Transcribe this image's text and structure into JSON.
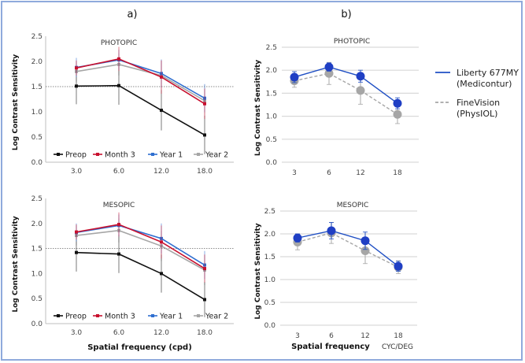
{
  "figure": {
    "panel_a_label": "a)",
    "panel_b_label": "b)",
    "border_color": "#8faadc"
  },
  "chart_data": [
    {
      "id": "a-photopic",
      "type": "line",
      "title": "PHOTOPIC",
      "xlabel": "",
      "ylabel": "Log Contrast Sensitivity",
      "categories": [
        "3.0",
        "6.0",
        "12.0",
        "18.0"
      ],
      "ylim": [
        0,
        2.5
      ],
      "yticks": [
        "0.0",
        "0.5",
        "1.0",
        "1.5",
        "2.0",
        "2.5"
      ],
      "reference_line": 1.5,
      "legend_position": "bottom-inside",
      "series": [
        {
          "name": "Preop",
          "color": "#111111",
          "values": [
            1.51,
            1.52,
            1.03,
            0.54
          ],
          "err": [
            0.36,
            0.38,
            0.4,
            0.38
          ]
        },
        {
          "name": "Month 3",
          "color": "#c8102e",
          "values": [
            1.87,
            2.05,
            1.69,
            1.16
          ],
          "err": [
            0.15,
            0.24,
            0.33,
            0.3
          ]
        },
        {
          "name": "Year 1",
          "color": "#2f6fd0",
          "values": [
            1.88,
            2.03,
            1.76,
            1.27
          ],
          "err": [
            0.19,
            0.2,
            0.28,
            0.28
          ]
        },
        {
          "name": "Year 2",
          "color": "#a6a6a6",
          "values": [
            1.8,
            1.94,
            1.72,
            1.22
          ],
          "err": [
            0.2,
            0.22,
            0.3,
            0.32
          ]
        }
      ]
    },
    {
      "id": "a-mesopic",
      "type": "line",
      "title": "MESOPIC",
      "xlabel": "Spatial frequency (cpd)",
      "ylabel": "Log Contrast Sensitivity",
      "categories": [
        "3.0",
        "6.0",
        "12.0",
        "18.0"
      ],
      "ylim": [
        0,
        2.5
      ],
      "yticks": [
        "0.0",
        "0.5",
        "1.0",
        "1.5",
        "2.0",
        "2.5"
      ],
      "reference_line": 1.5,
      "legend_position": "bottom-inside",
      "series": [
        {
          "name": "Preop",
          "color": "#111111",
          "values": [
            1.42,
            1.39,
            1.0,
            0.48
          ],
          "err": [
            0.38,
            0.38,
            0.38,
            0.35
          ]
        },
        {
          "name": "Month 3",
          "color": "#c8102e",
          "values": [
            1.83,
            1.98,
            1.63,
            1.1
          ],
          "err": [
            0.15,
            0.24,
            0.33,
            0.28
          ]
        },
        {
          "name": "Year 1",
          "color": "#2f6fd0",
          "values": [
            1.82,
            1.96,
            1.7,
            1.17
          ],
          "err": [
            0.18,
            0.22,
            0.3,
            0.28
          ]
        },
        {
          "name": "Year 2",
          "color": "#a6a6a6",
          "values": [
            1.76,
            1.86,
            1.55,
            1.07
          ],
          "err": [
            0.2,
            0.24,
            0.3,
            0.3
          ]
        }
      ]
    },
    {
      "id": "b-photopic",
      "type": "line",
      "title": "PHOTOPIC",
      "xlabel": "",
      "ylabel": "Log Contrast Sensitivity",
      "categories": [
        "3",
        "6",
        "12",
        "18"
      ],
      "ylim": [
        0,
        2.5
      ],
      "yticks": [
        "0.0",
        "0.5",
        "1.0",
        "1.5",
        "2.0",
        "2.5"
      ],
      "grid": true,
      "legend_position": "right",
      "series": [
        {
          "name": "Liberty 677MY (Medicontur)",
          "legend_lines": [
            "Liberty 677MY",
            "(Medicontur)"
          ],
          "color": "#1f4fc4",
          "dash": false,
          "values": [
            1.85,
            2.07,
            1.87,
            1.28
          ],
          "err": [
            0.12,
            0.09,
            0.13,
            0.12
          ]
        },
        {
          "name": "FineVision (PhysIOL)",
          "legend_lines": [
            "FineVision",
            "(PhysIOL)"
          ],
          "color": "#a6a6a6",
          "dash": true,
          "values": [
            1.77,
            1.93,
            1.56,
            1.04
          ],
          "err": [
            0.14,
            0.24,
            0.3,
            0.2
          ]
        }
      ]
    },
    {
      "id": "b-mesopic",
      "type": "line",
      "title": "MESOPIC",
      "xlabel": "Spatial frequency",
      "xunit": "CYC/DEG",
      "ylabel": "Log Contrast Sensitivity",
      "categories": [
        "3",
        "6",
        "12",
        "18"
      ],
      "ylim": [
        0,
        2.5
      ],
      "yticks": [
        "0.0",
        "0.5",
        "1.0",
        "1.5",
        "2.0",
        "2.5"
      ],
      "grid": true,
      "series": [
        {
          "name": "Liberty 677MY (Medicontur)",
          "color": "#1f4fc4",
          "dash": false,
          "values": [
            1.91,
            2.07,
            1.85,
            1.29
          ],
          "err": [
            0.09,
            0.18,
            0.19,
            0.11
          ]
        },
        {
          "name": "FineVision (PhysIOL)",
          "color": "#a6a6a6",
          "dash": true,
          "values": [
            1.82,
            2.02,
            1.63,
            1.27
          ],
          "err": [
            0.17,
            0.23,
            0.28,
            0.14
          ]
        }
      ]
    }
  ]
}
